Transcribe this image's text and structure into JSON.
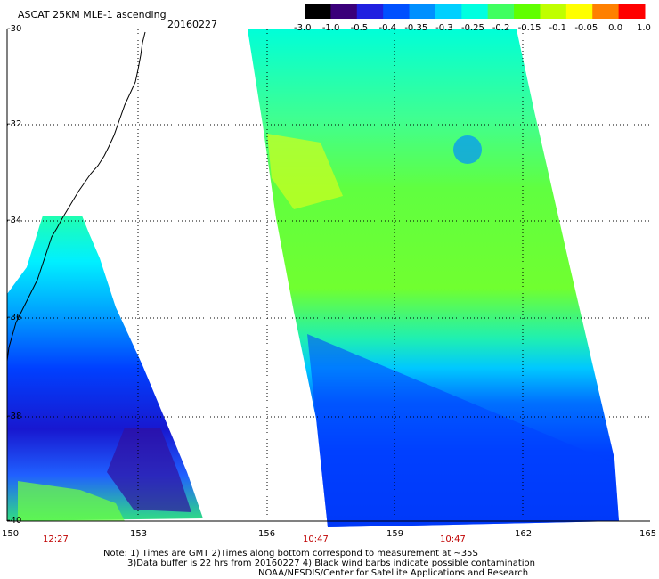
{
  "header": {
    "title": "ASCAT 25KM MLE-1 ascending",
    "date": "20160227"
  },
  "colorbar": {
    "labels": [
      "-3.0",
      "-1.0",
      "-0.5",
      "-0.4",
      "-0.35",
      "-0.3",
      "-0.25",
      "-0.2",
      "-0.15",
      "-0.1",
      "-0.05",
      "0.0",
      "1.0"
    ],
    "colors": [
      "#000000",
      "#3a007a",
      "#2020e0",
      "#0050ff",
      "#0090ff",
      "#00d0ff",
      "#00ffe0",
      "#40ff60",
      "#60ff00",
      "#c0ff00",
      "#ffff00",
      "#ff8000",
      "#ff0000"
    ]
  },
  "map": {
    "lon_ticks": [
      "150",
      "153",
      "156",
      "159",
      "162",
      "165"
    ],
    "lat_ticks": [
      "-30",
      "-32",
      "-34",
      "-36",
      "-38",
      "-40"
    ],
    "pass_times": [
      "12:27",
      "10:47",
      "10:47"
    ]
  },
  "notes": {
    "line1": "Note: 1) Times are GMT 2)Times along bottom correspond to measurement at ~35S",
    "line2": "3)Data buffer is 22 hrs from 20160227 4) Black wind barbs indicate possible contamination",
    "line3": "NOAA/NESDIS/Center for Satellite Applications and Research"
  }
}
